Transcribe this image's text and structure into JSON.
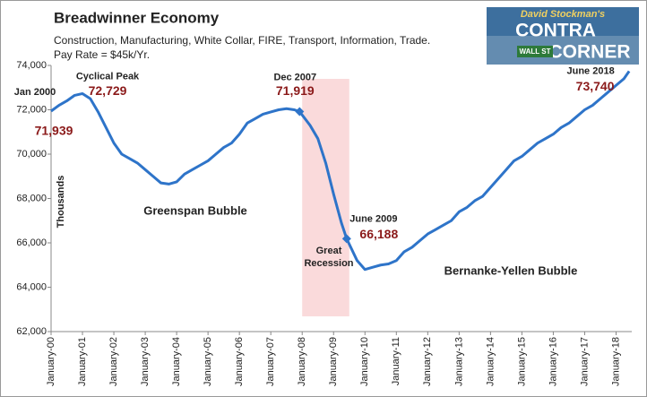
{
  "chart_data": {
    "type": "line",
    "title": "Breadwinner Economy",
    "subtitle": [
      "Construction, Manufacturing, White Collar, FIRE, Transport, Information, Trade.",
      "Pay Rate = $45k/Yr."
    ],
    "y_label": "Thousands",
    "color": "#2e74c9",
    "x": [
      2000,
      2000.25,
      2000.5,
      2000.75,
      2001,
      2001.25,
      2001.5,
      2001.75,
      2002,
      2002.25,
      2002.5,
      2002.75,
      2003,
      2003.25,
      2003.5,
      2003.75,
      2004,
      2004.25,
      2004.5,
      2004.75,
      2005,
      2005.25,
      2005.5,
      2005.75,
      2006,
      2006.25,
      2006.5,
      2006.75,
      2007,
      2007.25,
      2007.5,
      2007.75,
      2007.917,
      2008.25,
      2008.5,
      2008.75,
      2009,
      2009.25,
      2009.417,
      2009.75,
      2010,
      2010.25,
      2010.5,
      2010.75,
      2011,
      2011.25,
      2011.5,
      2011.75,
      2012,
      2012.25,
      2012.5,
      2012.75,
      2013,
      2013.25,
      2013.5,
      2013.75,
      2014,
      2014.25,
      2014.5,
      2014.75,
      2015,
      2015.25,
      2015.5,
      2015.75,
      2016,
      2016.25,
      2016.5,
      2016.75,
      2017,
      2017.25,
      2017.5,
      2017.75,
      2018,
      2018.25,
      2018.417
    ],
    "values": [
      71939,
      72200,
      72400,
      72650,
      72729,
      72500,
      71900,
      71200,
      70500,
      70000,
      69800,
      69600,
      69300,
      69000,
      68700,
      68650,
      68750,
      69100,
      69300,
      69500,
      69700,
      70000,
      70300,
      70500,
      70900,
      71400,
      71600,
      71800,
      71900,
      72000,
      72050,
      72000,
      71919,
      71300,
      70700,
      69600,
      68200,
      66900,
      66188,
      65200,
      64800,
      64900,
      65000,
      65050,
      65200,
      65600,
      65800,
      66100,
      66400,
      66600,
      66800,
      67000,
      67400,
      67600,
      67900,
      68100,
      68500,
      68900,
      69300,
      69700,
      69900,
      70200,
      70500,
      70700,
      70900,
      71200,
      71400,
      71700,
      72000,
      72200,
      72500,
      72800,
      73100,
      73400,
      73740
    ],
    "xlim": [
      2000,
      2018.5
    ],
    "xticks": [
      {
        "value": 2000,
        "label": "January-00"
      },
      {
        "value": 2001,
        "label": "January-01"
      },
      {
        "value": 2002,
        "label": "January-02"
      },
      {
        "value": 2003,
        "label": "January-03"
      },
      {
        "value": 2004,
        "label": "January-04"
      },
      {
        "value": 2005,
        "label": "January-05"
      },
      {
        "value": 2006,
        "label": "January-06"
      },
      {
        "value": 2007,
        "label": "January-07"
      },
      {
        "value": 2008,
        "label": "January-08"
      },
      {
        "value": 2009,
        "label": "January-09"
      },
      {
        "value": 2010,
        "label": "January-10"
      },
      {
        "value": 2011,
        "label": "January-11"
      },
      {
        "value": 2012,
        "label": "January-12"
      },
      {
        "value": 2013,
        "label": "January-13"
      },
      {
        "value": 2014,
        "label": "January-14"
      },
      {
        "value": 2015,
        "label": "January-15"
      },
      {
        "value": 2016,
        "label": "January-16"
      },
      {
        "value": 2017,
        "label": "January-17"
      },
      {
        "value": 2018,
        "label": "January-18"
      }
    ],
    "ylim": [
      62000,
      74000
    ],
    "yticks": [
      {
        "value": 62000,
        "label": "62,000"
      },
      {
        "value": 64000,
        "label": "64,000"
      },
      {
        "value": 66000,
        "label": "66,000"
      },
      {
        "value": 68000,
        "label": "68,000"
      },
      {
        "value": 70000,
        "label": "70,000"
      },
      {
        "value": 72000,
        "label": "72,000"
      },
      {
        "value": 74000,
        "label": "74,000"
      }
    ],
    "grid": false,
    "shaded_region": {
      "xlim": [
        2008,
        2009.5
      ],
      "color": "#fadadb"
    },
    "annotations": [
      {
        "label": "Jan 2000",
        "x": 2000,
        "value": 71939,
        "value_label": "71,939"
      },
      {
        "label": "Cyclical Peak",
        "x": 2001,
        "value": 72729,
        "value_label": "72,729"
      },
      {
        "label": "Dec 2007",
        "x": 2007.917,
        "value": 71919,
        "value_label": "71,919",
        "marker": true
      },
      {
        "label": "June 2009",
        "x": 2009.417,
        "value": 66188,
        "value_label": "66,188",
        "marker": true
      },
      {
        "label": "June 2018",
        "x": 2018.417,
        "value": 73740,
        "value_label": "73,740"
      }
    ],
    "notes": [
      "Greenspan Bubble",
      "Great",
      "Recession",
      "Bernanke-Yellen Bubble"
    ]
  },
  "logo": {
    "line1": "David Stockman's",
    "line2": "CONTRA",
    "line3": "CORNER",
    "sign": "WALL ST"
  }
}
